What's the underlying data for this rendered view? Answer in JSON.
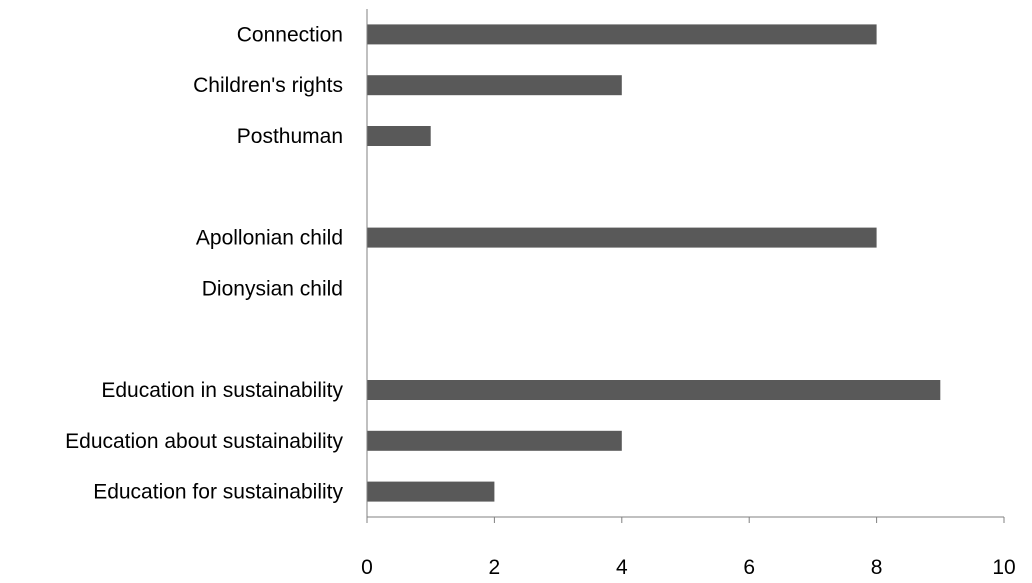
{
  "chart_data": {
    "type": "bar",
    "orientation": "horizontal",
    "categories": [
      "Connection",
      "Children's rights",
      "Posthuman",
      "",
      "Apollonian child",
      "Dionysian child",
      "",
      "Education in sustainability",
      "Education about sustainability",
      "Education for sustainability"
    ],
    "values": [
      8,
      4,
      1,
      null,
      8,
      0,
      null,
      9,
      4,
      2
    ],
    "xlim": [
      0,
      10
    ],
    "xticks": [
      "0",
      "2",
      "4",
      "6",
      "8",
      "10"
    ],
    "title": "",
    "xlabel": "",
    "ylabel": "",
    "grid": false,
    "legend": "none",
    "bar_color": "#595959",
    "axis_color": "#808080"
  }
}
